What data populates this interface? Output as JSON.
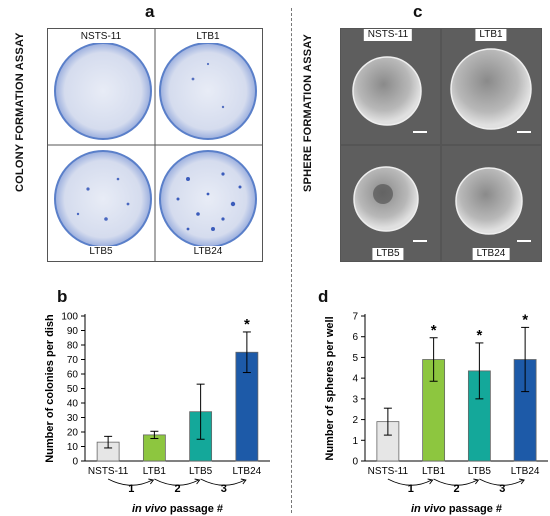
{
  "panels": {
    "a": {
      "letter": "a",
      "side_title": "COLONY FORMATION ASSAY",
      "tiles": [
        "NSTS-11",
        "LTB1",
        "LTB5",
        "LTB24"
      ]
    },
    "c": {
      "letter": "c",
      "side_title": "SPHERE FORMATION ASSAY",
      "tiles": [
        "NSTS-11",
        "LTB1",
        "LTB5",
        "LTB24"
      ]
    },
    "b": {
      "letter": "b"
    },
    "d": {
      "letter": "d"
    }
  },
  "passage_steps": [
    "1",
    "2",
    "3"
  ],
  "passage_label_italic": "in vivo",
  "passage_label_rest": " passage #",
  "significance_marker": "*",
  "colors": {
    "NSTS-11": "#e6e6e6",
    "LTB1": "#8dc63f",
    "LTB5": "#14a89a",
    "LTB24": "#1d5aa8"
  },
  "chart_data": [
    {
      "type": "bar",
      "panel": "b",
      "ylabel": "Number of colonies per dish",
      "xlabel": "in vivo passage #",
      "categories": [
        "NSTS-11",
        "LTB1",
        "LTB5",
        "LTB24"
      ],
      "values": [
        13,
        18,
        34,
        75
      ],
      "errors": [
        4,
        2.5,
        19,
        14
      ],
      "significant": [
        false,
        false,
        false,
        true
      ],
      "ylim": [
        0,
        100
      ],
      "yticks": [
        0,
        10,
        20,
        30,
        40,
        50,
        60,
        70,
        80,
        90,
        100
      ]
    },
    {
      "type": "bar",
      "panel": "d",
      "ylabel": "Number of spheres per well",
      "xlabel": "in vivo passage #",
      "categories": [
        "NSTS-11",
        "LTB1",
        "LTB5",
        "LTB24"
      ],
      "values": [
        1.9,
        4.9,
        4.35,
        4.9
      ],
      "errors": [
        0.65,
        1.05,
        1.35,
        1.55
      ],
      "significant": [
        false,
        true,
        true,
        true
      ],
      "ylim": [
        0,
        7
      ],
      "yticks": [
        0,
        1,
        2,
        3,
        4,
        5,
        6,
        7
      ]
    }
  ]
}
